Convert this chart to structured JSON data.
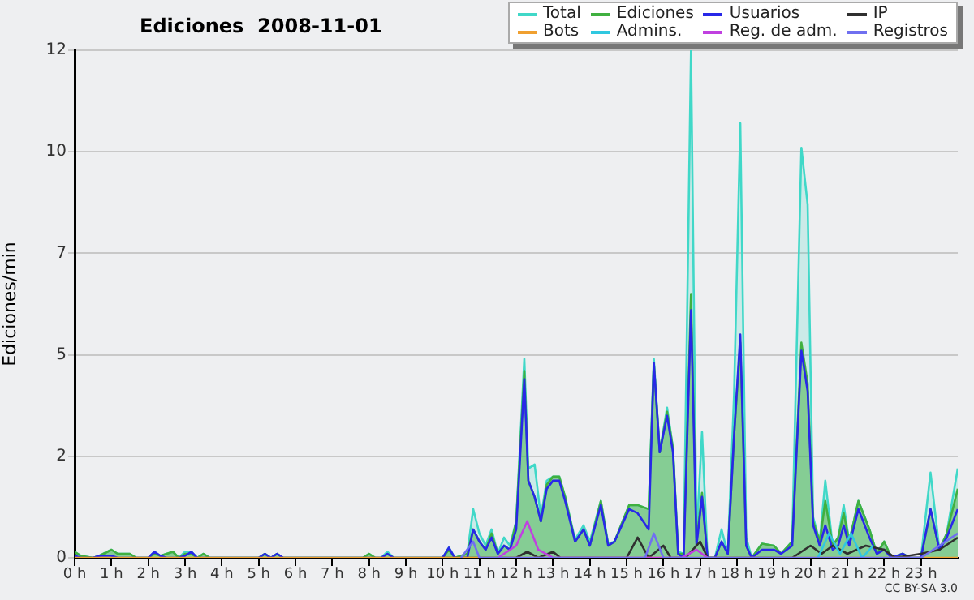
{
  "chart_data": {
    "type": "line",
    "title": "Ediciones  2008-11-01",
    "ylabel": "Ediciones/min",
    "annotations": [
      "CC BY-SA 3.0"
    ],
    "xlim": [
      0,
      24
    ],
    "xticks": [
      {
        "value": 0,
        "label": "0 h"
      },
      {
        "value": 1,
        "label": "1 h"
      },
      {
        "value": 2,
        "label": "2 h"
      },
      {
        "value": 3,
        "label": "3 h"
      },
      {
        "value": 4,
        "label": "4 h"
      },
      {
        "value": 5,
        "label": "5 h"
      },
      {
        "value": 6,
        "label": "6 h"
      },
      {
        "value": 7,
        "label": "7 h"
      },
      {
        "value": 8,
        "label": "8 h"
      },
      {
        "value": 9,
        "label": "9 h"
      },
      {
        "value": 10,
        "label": "10 h"
      },
      {
        "value": 11,
        "label": "11 h"
      },
      {
        "value": 12,
        "label": "12 h"
      },
      {
        "value": 13,
        "label": "13 h"
      },
      {
        "value": 14,
        "label": "14 h"
      },
      {
        "value": 15,
        "label": "15 h"
      },
      {
        "value": 16,
        "label": "16 h"
      },
      {
        "value": 17,
        "label": "17 h"
      },
      {
        "value": 18,
        "label": "18 h"
      },
      {
        "value": 19,
        "label": "19 h"
      },
      {
        "value": 20,
        "label": "20 h"
      },
      {
        "value": 21,
        "label": "21 h"
      },
      {
        "value": 22,
        "label": "22 h"
      },
      {
        "value": 23,
        "label": "23 h"
      }
    ],
    "ylim": [
      0,
      12.5
    ],
    "yticks": [
      0,
      {
        "value": 2.5,
        "label": "2"
      },
      {
        "value": 5,
        "label": "5"
      },
      {
        "value": 7.5,
        "label": "7"
      },
      {
        "value": 10,
        "label": "10"
      },
      {
        "value": 12.5,
        "label": "12"
      }
    ],
    "grid": "y",
    "legend": "top right",
    "marker": "none",
    "line_style": "solid",
    "x": [
      0,
      0.17,
      0.5,
      0.67,
      1.0,
      1.17,
      1.5,
      1.67,
      2.0,
      2.17,
      2.33,
      2.5,
      2.67,
      2.83,
      3.0,
      3.17,
      3.33,
      3.5,
      3.67,
      5.0,
      5.17,
      5.33,
      5.5,
      5.67,
      7.83,
      8.0,
      8.17,
      8.33,
      8.5,
      8.67,
      10.0,
      10.17,
      10.33,
      10.67,
      10.83,
      11.0,
      11.17,
      11.33,
      11.5,
      11.67,
      11.83,
      12.0,
      12.22,
      12.33,
      12.5,
      12.67,
      12.83,
      13.0,
      13.17,
      13.33,
      13.6,
      13.83,
      14.0,
      14.3,
      14.5,
      14.67,
      15.07,
      15.3,
      15.6,
      15.74,
      15.9,
      16.1,
      16.26,
      16.4,
      16.55,
      16.75,
      16.9,
      17.05,
      17.2,
      17.4,
      17.58,
      17.75,
      17.92,
      18.09,
      18.25,
      18.4,
      18.68,
      19.0,
      19.2,
      19.5,
      19.75,
      19.92,
      20.07,
      20.25,
      20.4,
      20.6,
      20.75,
      20.9,
      21.05,
      21.3,
      21.6,
      21.8,
      22.0,
      22.2,
      22.5,
      22.7,
      23.0,
      23.26,
      23.5,
      23.7,
      24.0
    ],
    "series": [
      {
        "name": "Total",
        "type": "area",
        "color": "#40d8c8",
        "values": [
          0.15,
          0.05,
          0,
          0.05,
          0.2,
          0.1,
          0.1,
          0,
          0,
          0.15,
          0.05,
          0.1,
          0.15,
          0,
          0.15,
          0.15,
          0,
          0.1,
          0,
          0,
          0.1,
          0,
          0.1,
          0,
          0,
          0.1,
          0,
          0,
          0.15,
          0,
          0,
          0.25,
          0,
          0.1,
          1.2,
          0.6,
          0.3,
          0.7,
          0.1,
          0.5,
          0.3,
          0.9,
          4.9,
          2.2,
          2.3,
          1.0,
          1.9,
          2.0,
          2.0,
          1.5,
          0.45,
          0.8,
          0.4,
          1.4,
          0.35,
          0.4,
          1.3,
          1.3,
          1.2,
          4.9,
          2.6,
          3.7,
          2.7,
          0.15,
          0.1,
          12.5,
          0.5,
          3.1,
          0,
          0,
          0.7,
          0.1,
          4.0,
          10.7,
          0.5,
          0,
          0.35,
          0.3,
          0.1,
          0.4,
          10.1,
          8.7,
          1.0,
          0.4,
          1.9,
          0.3,
          0.5,
          1.3,
          0.4,
          1.4,
          0.7,
          0.1,
          0.4,
          0,
          0.1,
          0,
          0,
          2.1,
          0.2,
          0.6,
          2.2
        ]
      },
      {
        "name": "Ediciones",
        "type": "area",
        "color": "#40b040",
        "values": [
          0.15,
          0.05,
          0,
          0.05,
          0.2,
          0.1,
          0.1,
          0,
          0,
          0.1,
          0.05,
          0.1,
          0.15,
          0,
          0.1,
          0.1,
          0,
          0.1,
          0,
          0,
          0.1,
          0,
          0.1,
          0,
          0,
          0.1,
          0,
          0,
          0.1,
          0,
          0,
          0.2,
          0,
          0.1,
          0.7,
          0.4,
          0.2,
          0.6,
          0.1,
          0.3,
          0.2,
          0.9,
          4.6,
          1.9,
          1.5,
          0.9,
          1.8,
          2.0,
          2.0,
          1.5,
          0.4,
          0.7,
          0.3,
          1.4,
          0.3,
          0.4,
          1.3,
          1.3,
          1.2,
          4.8,
          2.6,
          3.6,
          2.7,
          0.1,
          0.1,
          6.5,
          0.4,
          1.6,
          0,
          0,
          0.4,
          0.1,
          3.0,
          5.3,
          0.3,
          0,
          0.35,
          0.3,
          0.1,
          0.4,
          5.3,
          4.3,
          0.9,
          0.4,
          1.4,
          0.3,
          0.5,
          1.1,
          0.4,
          1.4,
          0.7,
          0.1,
          0.4,
          0,
          0.1,
          0,
          0,
          1.2,
          0.2,
          0.6,
          1.7
        ]
      },
      {
        "name": "Usuarios",
        "color": "#2828e8",
        "values": [
          0.05,
          0,
          0,
          0.05,
          0.05,
          0,
          0,
          0,
          0,
          0.15,
          0.05,
          0,
          0,
          0,
          0.05,
          0.15,
          0,
          0,
          0,
          0,
          0.1,
          0,
          0.1,
          0,
          0,
          0,
          0,
          0,
          0.1,
          0,
          0,
          0.25,
          0,
          0,
          0.7,
          0.4,
          0.2,
          0.5,
          0.1,
          0.3,
          0.2,
          0.7,
          4.4,
          1.9,
          1.5,
          0.9,
          1.7,
          1.9,
          1.9,
          1.4,
          0.4,
          0.7,
          0.3,
          1.3,
          0.3,
          0.4,
          1.2,
          1.1,
          0.7,
          4.8,
          2.6,
          3.5,
          2.6,
          0.1,
          0,
          6.1,
          0.3,
          1.5,
          0,
          0,
          0.4,
          0.1,
          3.0,
          5.5,
          0.3,
          0,
          0.2,
          0.2,
          0.1,
          0.3,
          5.1,
          4.1,
          0.8,
          0.3,
          0.8,
          0.2,
          0.3,
          0.8,
          0.3,
          1.2,
          0.5,
          0.1,
          0.2,
          0,
          0.1,
          0,
          0,
          1.2,
          0.2,
          0.5,
          1.2
        ]
      },
      {
        "name": "IP",
        "color": "#303030",
        "x": [
          10.0,
          12.0,
          12.3,
          12.6,
          13.0,
          13.2,
          15.0,
          15.3,
          15.6,
          16.0,
          16.2,
          16.6,
          17.0,
          17.2,
          19.5,
          20.0,
          20.3,
          20.6,
          21.0,
          21.5,
          22.0,
          22.3,
          23.0,
          23.5,
          24.0
        ],
        "values": [
          0,
          0,
          0.15,
          0,
          0.15,
          0,
          0,
          0.5,
          0,
          0.3,
          0,
          0,
          0.4,
          0,
          0,
          0.3,
          0.1,
          0.3,
          0.1,
          0.3,
          0.2,
          0,
          0.1,
          0.2,
          0.5
        ]
      },
      {
        "name": "Bots",
        "color": "#f0a030",
        "x": [
          0,
          24
        ],
        "values": [
          0,
          0
        ]
      },
      {
        "name": "Admins.",
        "color": "#30c8e0",
        "x": [
          20.2,
          20.5,
          20.8,
          21.1,
          21.4,
          21.7
        ],
        "values": [
          0,
          0.6,
          0.1,
          0.6,
          0,
          0.3
        ]
      },
      {
        "name": "Reg. de adm.",
        "color": "#c040e0",
        "x": [
          11.5,
          12.0,
          12.3,
          12.6,
          13.0,
          16.5,
          16.9,
          17.2
        ],
        "values": [
          0,
          0.3,
          0.9,
          0.2,
          0,
          0,
          0.2,
          0
        ]
      },
      {
        "name": "Registros",
        "color": "#7070f0",
        "x": [
          10.5,
          10.83,
          11.0,
          15.5,
          15.74,
          16.0,
          23.0,
          23.5,
          24.0
        ],
        "values": [
          0,
          0.4,
          0,
          0,
          0.6,
          0,
          0,
          0.3,
          0.6
        ]
      }
    ]
  }
}
